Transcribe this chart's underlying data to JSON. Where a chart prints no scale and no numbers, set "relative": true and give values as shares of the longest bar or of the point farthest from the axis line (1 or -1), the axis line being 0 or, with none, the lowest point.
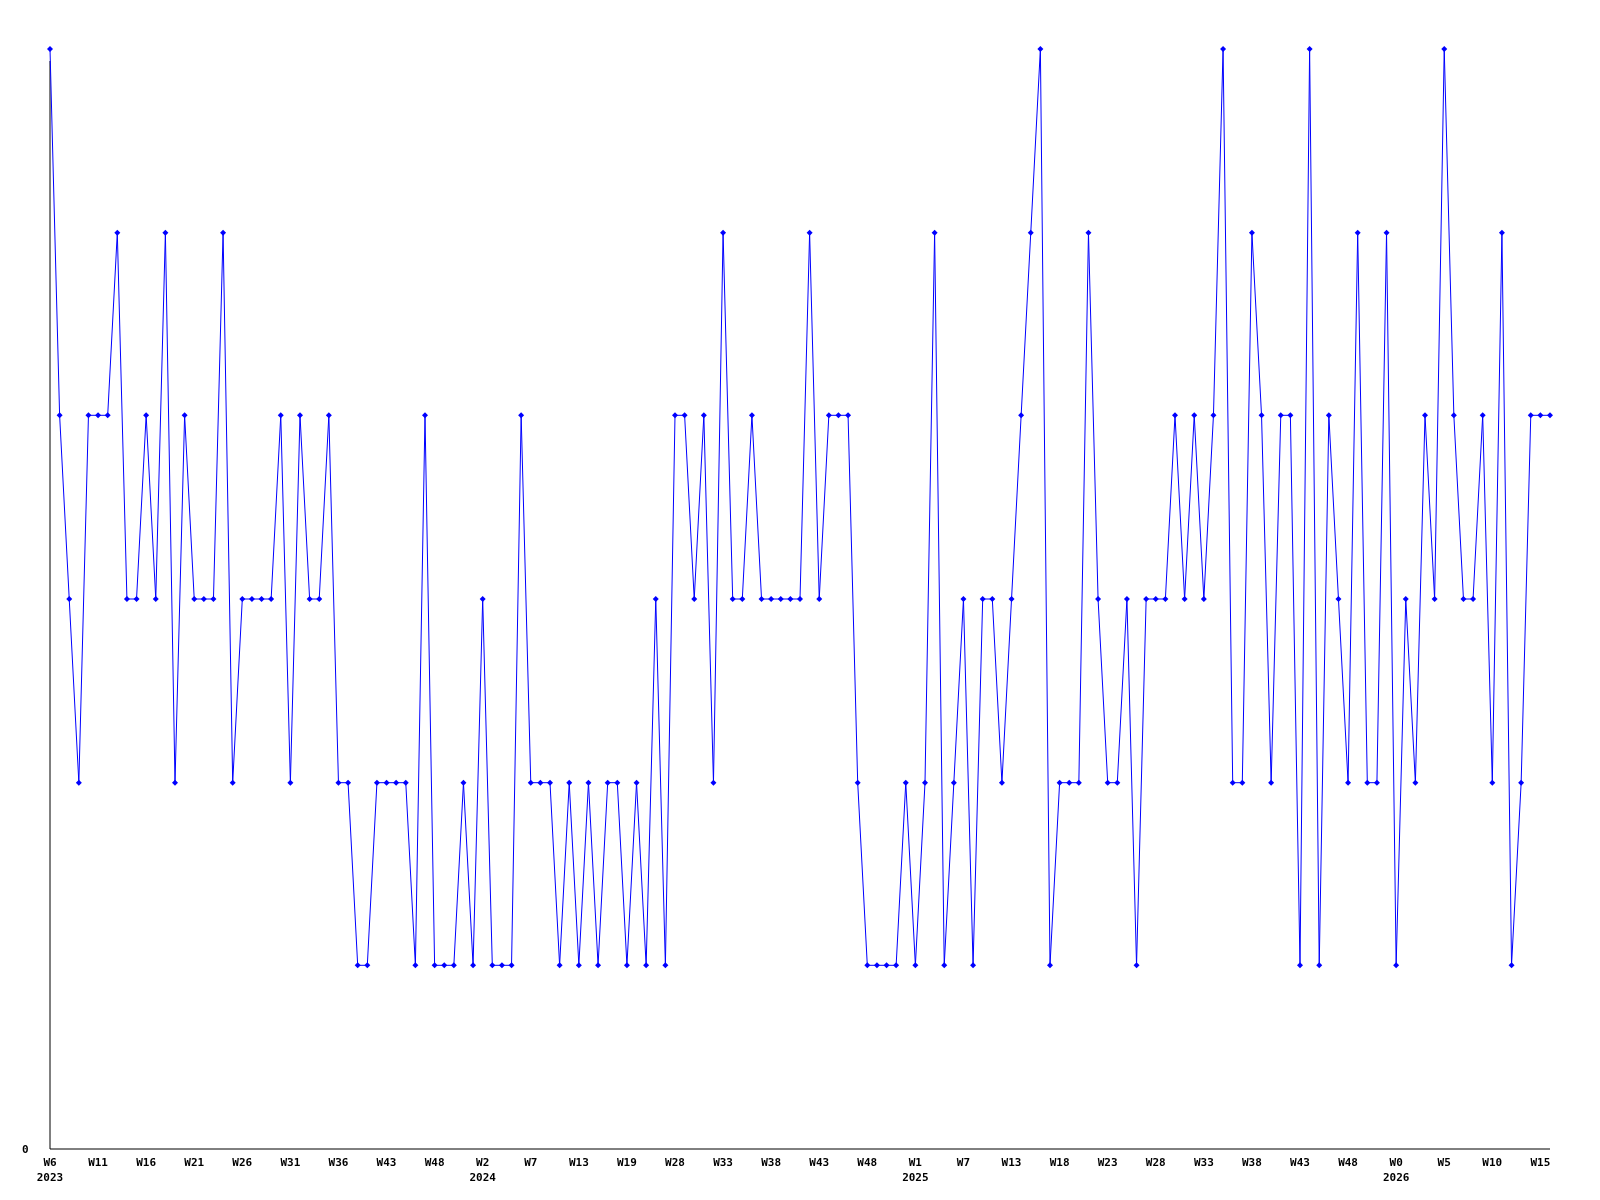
{
  "chart_data": {
    "type": "line",
    "relative": true,
    "categories": [
      "W6\n2023",
      null,
      null,
      null,
      null,
      "W11",
      null,
      null,
      null,
      null,
      "W16",
      null,
      null,
      null,
      null,
      "W21",
      null,
      null,
      null,
      null,
      "W26",
      null,
      null,
      null,
      null,
      "W31",
      null,
      null,
      null,
      null,
      "W36",
      null,
      null,
      null,
      null,
      "W43",
      null,
      null,
      null,
      null,
      "W48",
      null,
      null,
      null,
      null,
      "W2\n2024",
      null,
      null,
      null,
      null,
      "W7",
      null,
      null,
      null,
      null,
      "W13",
      null,
      null,
      null,
      null,
      "W19",
      null,
      null,
      null,
      null,
      "W28",
      null,
      null,
      null,
      null,
      "W33",
      null,
      null,
      null,
      null,
      "W38",
      null,
      null,
      null,
      null,
      "W43",
      null,
      null,
      null,
      null,
      "W48",
      null,
      null,
      null,
      null,
      "W1\n2025",
      null,
      null,
      null,
      null,
      "W7",
      null,
      null,
      null,
      null,
      "W13",
      null,
      null,
      null,
      null,
      "W18",
      null,
      null,
      null,
      null,
      "W23",
      null,
      null,
      null,
      null,
      "W28",
      null,
      null,
      null,
      null,
      "W33",
      null,
      null,
      null,
      null,
      "W38",
      null,
      null,
      null,
      null,
      "W43",
      null,
      null,
      null,
      null,
      "W48",
      null,
      null,
      null,
      null,
      "W0\n2026",
      null,
      null,
      null,
      null,
      "W5",
      null,
      null,
      null,
      null,
      "W10",
      null,
      null,
      null,
      null,
      "W15",
      null
    ],
    "series": [
      {
        "color": "#0000ff",
        "values": [
          1,
          0.667,
          0.5,
          0.333,
          0.667,
          0.667,
          0.667,
          0.833,
          0.5,
          0.5,
          0.667,
          0.5,
          0.833,
          0.333,
          0.667,
          0.5,
          0.5,
          0.5,
          0.833,
          0.333,
          0.5,
          0.5,
          0.5,
          0.5,
          0.667,
          0.333,
          0.667,
          0.5,
          0.5,
          0.667,
          0.333,
          0.333,
          0.167,
          0.167,
          0.333,
          0.333,
          0.333,
          0.333,
          0.167,
          0.667,
          0.167,
          0.167,
          0.167,
          0.333,
          0.167,
          0.5,
          0.167,
          0.167,
          0.167,
          0.667,
          0.333,
          0.333,
          0.333,
          0.167,
          0.333,
          0.167,
          0.333,
          0.167,
          0.333,
          0.333,
          0.167,
          0.333,
          0.167,
          0.5,
          0.167,
          0.667,
          0.667,
          0.5,
          0.667,
          0.333,
          0.833,
          0.5,
          0.5,
          0.667,
          0.5,
          0.5,
          0.5,
          0.5,
          0.5,
          0.833,
          0.5,
          0.667,
          0.667,
          0.667,
          0.333,
          0.167,
          0.167,
          0.167,
          0.167,
          0.333,
          0.167,
          0.333,
          0.833,
          0.167,
          0.333,
          0.5,
          0.167,
          0.5,
          0.5,
          0.333,
          0.5,
          0.667,
          0.833,
          1,
          0.167,
          0.333,
          0.333,
          0.333,
          0.833,
          0.5,
          0.333,
          0.333,
          0.5,
          0.167,
          0.5,
          0.5,
          0.5,
          0.667,
          0.5,
          0.667,
          0.5,
          0.667,
          1,
          0.333,
          0.333,
          0.833,
          0.667,
          0.333,
          0.667,
          0.667,
          0.167,
          1,
          0.167,
          0.667,
          0.5,
          0.333,
          0.833,
          0.333,
          0.333,
          0.833,
          0.167,
          0.5,
          0.333,
          0.667,
          0.5,
          1,
          0.667,
          0.5,
          0.5,
          0.667,
          0.333,
          0.833,
          0.167,
          0.333,
          0.667,
          0.667,
          0.667
        ]
      }
    ],
    "marker": "diamond",
    "line_style": "solid",
    "grid": false,
    "annotations": [
      "0"
    ]
  }
}
